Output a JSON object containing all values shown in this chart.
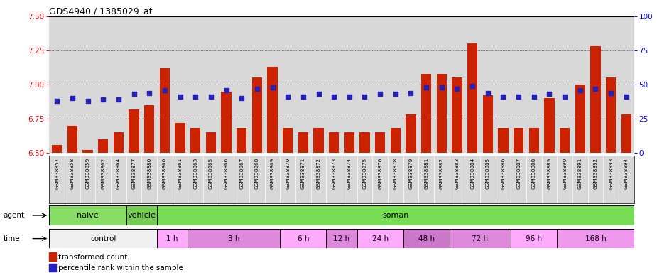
{
  "title": "GDS4940 / 1385029_at",
  "samples": [
    "GSM338857",
    "GSM338858",
    "GSM338859",
    "GSM338862",
    "GSM338864",
    "GSM338877",
    "GSM338880",
    "GSM338860",
    "GSM338861",
    "GSM338863",
    "GSM338865",
    "GSM338866",
    "GSM338867",
    "GSM338868",
    "GSM338869",
    "GSM338870",
    "GSM338871",
    "GSM338872",
    "GSM338873",
    "GSM338874",
    "GSM338875",
    "GSM338876",
    "GSM338878",
    "GSM338879",
    "GSM338881",
    "GSM338882",
    "GSM338883",
    "GSM338884",
    "GSM338885",
    "GSM338886",
    "GSM338887",
    "GSM338888",
    "GSM338889",
    "GSM338890",
    "GSM338891",
    "GSM338892",
    "GSM338893",
    "GSM338894"
  ],
  "bar_values": [
    6.56,
    6.7,
    6.52,
    6.6,
    6.65,
    6.82,
    6.85,
    7.12,
    6.72,
    6.68,
    6.65,
    6.95,
    6.68,
    7.05,
    7.13,
    6.68,
    6.65,
    6.68,
    6.65,
    6.65,
    6.65,
    6.65,
    6.68,
    6.78,
    7.08,
    7.08,
    7.05,
    7.3,
    6.92,
    6.68,
    6.68,
    6.68,
    6.9,
    6.68,
    7.0,
    7.28,
    7.05,
    6.78
  ],
  "percentile_values": [
    38,
    40,
    38,
    39,
    39,
    43,
    44,
    46,
    41,
    41,
    41,
    46,
    40,
    47,
    48,
    41,
    41,
    43,
    41,
    41,
    41,
    43,
    43,
    44,
    48,
    48,
    47,
    49,
    44,
    41,
    41,
    41,
    43,
    41,
    46,
    47,
    44,
    41
  ],
  "ylim_left": [
    6.5,
    7.5
  ],
  "ylim_right": [
    0,
    100
  ],
  "yticks_left": [
    6.5,
    6.75,
    7.0,
    7.25,
    7.5
  ],
  "yticks_right": [
    0,
    25,
    50,
    75,
    100
  ],
  "bar_color": "#cc2200",
  "dot_color": "#2222bb",
  "grid_color": "#000000",
  "background_color": "#d8d8d8",
  "agent_groups": [
    {
      "label": "naive",
      "start": 0,
      "end": 5,
      "color": "#88dd66"
    },
    {
      "label": "vehicle",
      "start": 5,
      "end": 7,
      "color": "#77cc55"
    },
    {
      "label": "soman",
      "start": 7,
      "end": 38,
      "color": "#77dd55"
    }
  ],
  "time_groups": [
    {
      "label": "control",
      "start": 0,
      "end": 7,
      "color": "#f0f0f0"
    },
    {
      "label": "1 h",
      "start": 7,
      "end": 9,
      "color": "#ffaaff"
    },
    {
      "label": "3 h",
      "start": 9,
      "end": 15,
      "color": "#dd88dd"
    },
    {
      "label": "6 h",
      "start": 15,
      "end": 18,
      "color": "#ffaaff"
    },
    {
      "label": "12 h",
      "start": 18,
      "end": 20,
      "color": "#dd88dd"
    },
    {
      "label": "24 h",
      "start": 20,
      "end": 23,
      "color": "#ffaaff"
    },
    {
      "label": "48 h",
      "start": 23,
      "end": 26,
      "color": "#cc77cc"
    },
    {
      "label": "72 h",
      "start": 26,
      "end": 30,
      "color": "#dd88dd"
    },
    {
      "label": "96 h",
      "start": 30,
      "end": 33,
      "color": "#ffaaff"
    },
    {
      "label": "168 h",
      "start": 33,
      "end": 38,
      "color": "#ee99ee"
    }
  ],
  "fig_width": 9.25,
  "fig_height": 3.84,
  "dpi": 100
}
